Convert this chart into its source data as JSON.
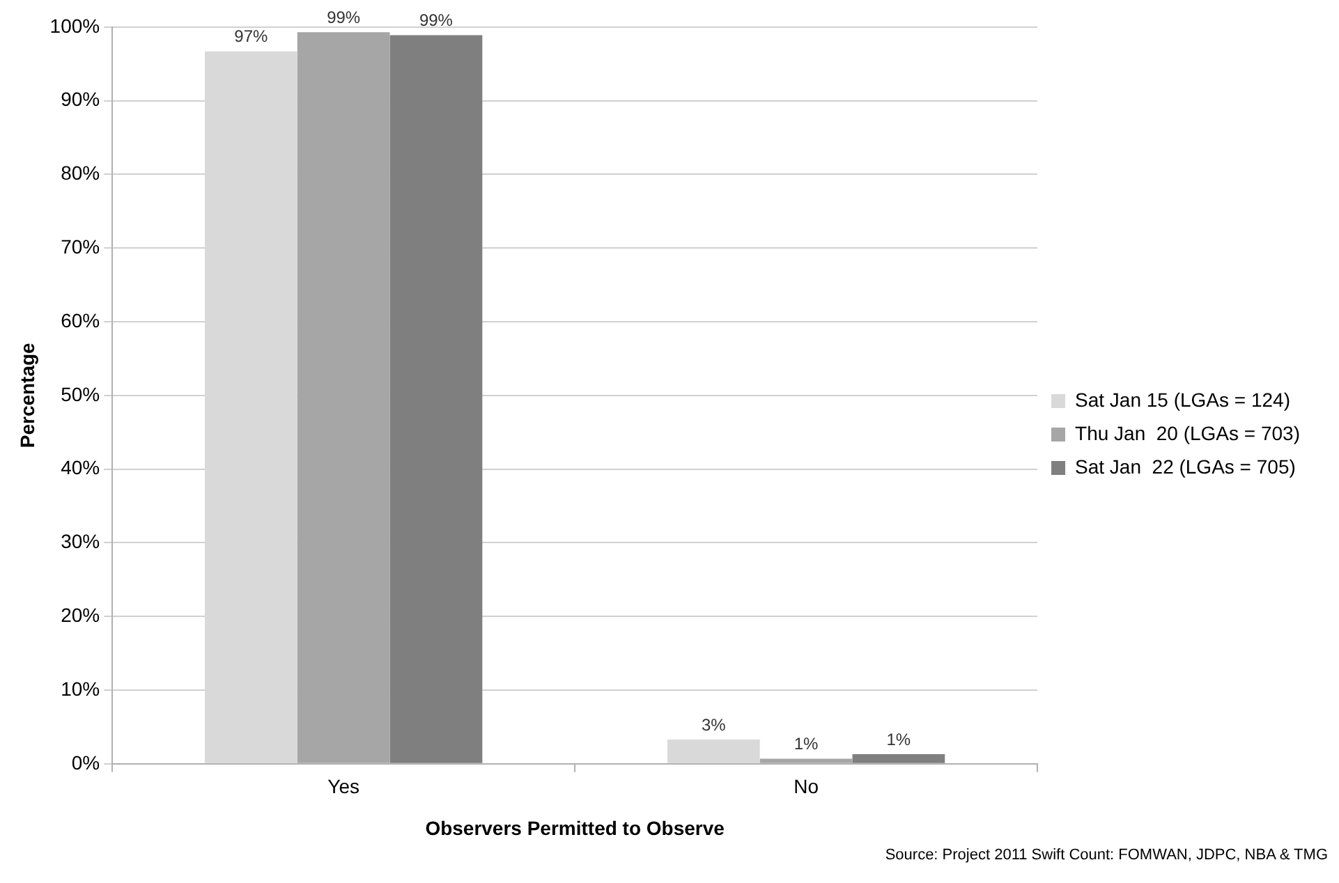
{
  "chart_data": {
    "type": "bar",
    "xlabel": "Observers Permitted to Observe",
    "ylabel": "Percentage",
    "categories": [
      "Yes",
      "No"
    ],
    "series": [
      {
        "name": "Sat Jan 15 (LGAs = 124)",
        "color": "#d9d9d9",
        "values": [
          96.7,
          3.3
        ],
        "value_labels": [
          "97%",
          "3%"
        ]
      },
      {
        "name": "Thu Jan  20 (LGAs = 703)",
        "color": "#a6a6a6",
        "values": [
          99.3,
          0.7
        ],
        "value_labels": [
          "99%",
          "1%"
        ]
      },
      {
        "name": "Sat Jan  22 (LGAs = 705)",
        "color": "#7f7f7f",
        "values": [
          98.9,
          1.3
        ],
        "value_labels": [
          "99%",
          "1%"
        ]
      }
    ],
    "ylim": [
      0,
      100
    ],
    "yticks": [
      {
        "value": 0,
        "label": "0%"
      },
      {
        "value": 10,
        "label": "10%"
      },
      {
        "value": 20,
        "label": "20%"
      },
      {
        "value": 30,
        "label": "30%"
      },
      {
        "value": 40,
        "label": "40%"
      },
      {
        "value": 50,
        "label": "50%"
      },
      {
        "value": 60,
        "label": "60%"
      },
      {
        "value": 70,
        "label": "70%"
      },
      {
        "value": 80,
        "label": "80%"
      },
      {
        "value": 90,
        "label": "90%"
      },
      {
        "value": 100,
        "label": "100%"
      }
    ],
    "grid": "y",
    "legend": "right",
    "annotations": [
      "Source: Project 2011 Swift Count: FOMWAN, JDPC, NBA & TMG"
    ]
  }
}
